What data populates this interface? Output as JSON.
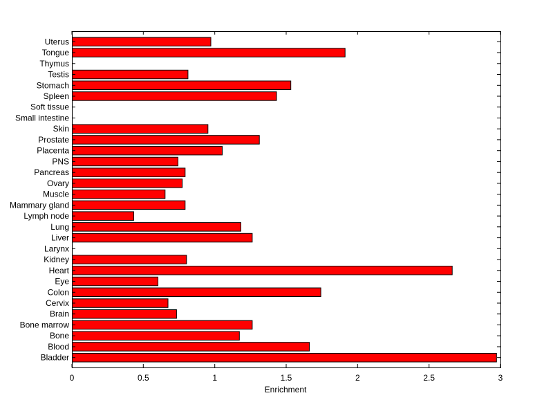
{
  "chart_data": {
    "type": "bar",
    "orientation": "horizontal",
    "title": "",
    "xlabel": "Enrichment",
    "ylabel": "",
    "xlim": [
      0,
      3
    ],
    "xticks": [
      0,
      0.5,
      1,
      1.5,
      2,
      2.5,
      3
    ],
    "xtick_labels": [
      "0",
      "0.5",
      "1",
      "1.5",
      "2",
      "2.5",
      "3"
    ],
    "grid": false,
    "legend": "none",
    "bar_color": "#ff0000",
    "bar_edge_color": "#000000",
    "categories": [
      "Bladder",
      "Blood",
      "Bone",
      "Bone marrow",
      "Brain",
      "Cervix",
      "Colon",
      "Eye",
      "Heart",
      "Kidney",
      "Larynx",
      "Liver",
      "Lung",
      "Lymph node",
      "Mammary gland",
      "Muscle",
      "Ovary",
      "Pancreas",
      "PNS",
      "Placenta",
      "Prostate",
      "Skin",
      "Small intestine",
      "Soft tissue",
      "Spleen",
      "Stomach",
      "Testis",
      "Thymus",
      "Tongue",
      "Uterus"
    ],
    "values": [
      2.97,
      1.66,
      1.17,
      1.26,
      0.73,
      0.67,
      1.74,
      0.6,
      2.66,
      0.8,
      0,
      1.26,
      1.18,
      0.43,
      0.79,
      0.65,
      0.77,
      0.79,
      0.74,
      1.05,
      1.31,
      0.95,
      0,
      0,
      1.43,
      1.53,
      0.81,
      0,
      1.91,
      0.97
    ]
  }
}
